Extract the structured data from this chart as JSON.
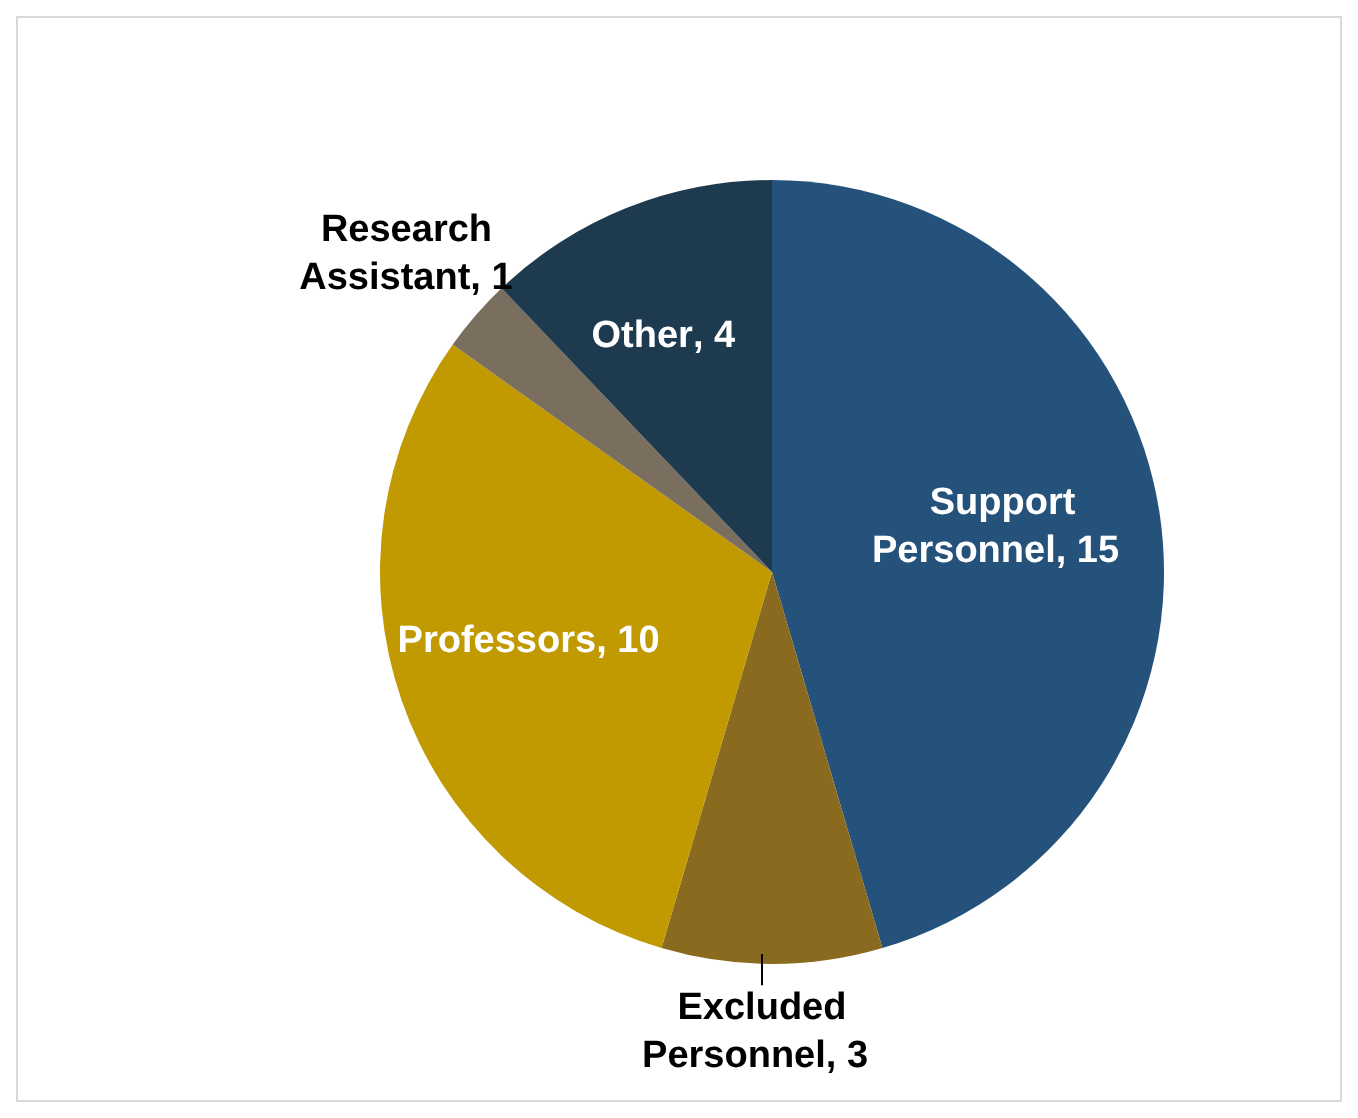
{
  "chart_data": {
    "type": "pie",
    "categories": [
      "Support Personnel",
      "Excluded Personnel",
      "Professors",
      "Research Assistant",
      "Other"
    ],
    "values": [
      15,
      3,
      10,
      1,
      4
    ],
    "value_labels": [
      ", 15",
      ", 3",
      ", 10",
      ", 1",
      ", 4"
    ],
    "colors": [
      "#24527a",
      "#8a6a1e",
      "#c09a00",
      "#7a6e5e",
      "#1d3a4e"
    ]
  }
}
